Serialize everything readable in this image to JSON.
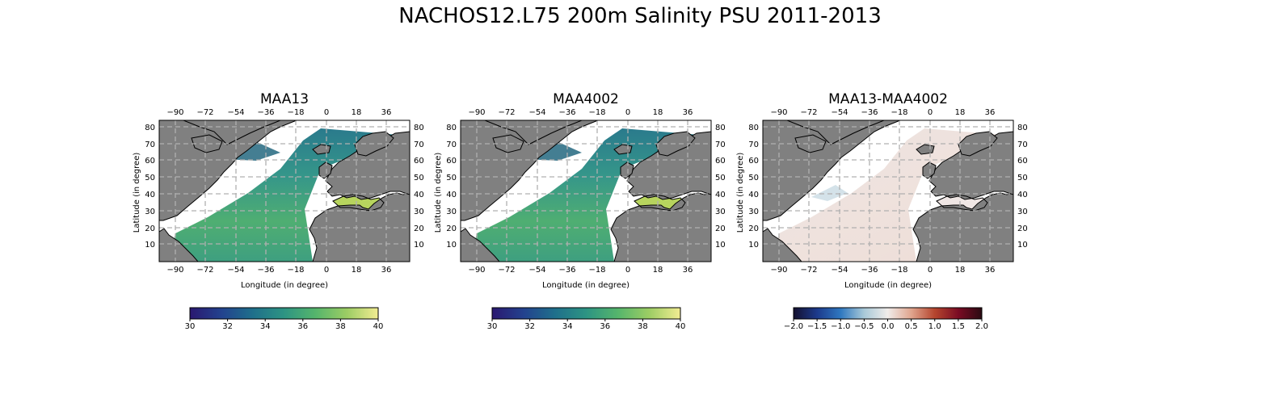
{
  "figure": {
    "title": "NACHOS12.L75 200m Salinity PSU 2011-2013"
  },
  "colors": {
    "land": "#808080",
    "grid": "#b0b0b0",
    "coast": "#000000",
    "missing": "#ffffff"
  },
  "maps": [
    {
      "id": "maa13",
      "title": "MAA13",
      "xlabel": "Longitude (in degree)",
      "ylabel": "Latitude (in degree)",
      "lon_ticks": [
        "−90",
        "−72",
        "−54",
        "−36",
        "−18",
        "0",
        "18",
        "36"
      ],
      "lat_ticks": [
        "10",
        "20",
        "30",
        "40",
        "50",
        "60",
        "70",
        "80"
      ],
      "field": "salinity",
      "colorbar": {
        "ticks": [
          "30",
          "32",
          "34",
          "36",
          "38",
          "40"
        ],
        "stops": [
          "#2a1870",
          "#23428e",
          "#1f6f8b",
          "#2d9483",
          "#55b56c",
          "#9ccd64",
          "#f2ec92"
        ]
      }
    },
    {
      "id": "maa4002",
      "title": "MAA4002",
      "xlabel": "Longitude (in degree)",
      "ylabel": "Latitude (in degree)",
      "lon_ticks": [
        "−90",
        "−72",
        "−54",
        "−36",
        "−18",
        "0",
        "18",
        "36"
      ],
      "lat_ticks": [
        "10",
        "20",
        "30",
        "40",
        "50",
        "60",
        "70",
        "80"
      ],
      "field": "salinity",
      "colorbar": {
        "ticks": [
          "30",
          "32",
          "34",
          "36",
          "38",
          "40"
        ],
        "stops": [
          "#2a1870",
          "#23428e",
          "#1f6f8b",
          "#2d9483",
          "#55b56c",
          "#9ccd64",
          "#f2ec92"
        ]
      }
    },
    {
      "id": "diff",
      "title": "MAA13-MAA4002",
      "xlabel": "Longitude (in degree)",
      "ylabel": "Latitude (in degree)",
      "lon_ticks": [
        "−90",
        "−72",
        "−54",
        "−36",
        "−18",
        "0",
        "18",
        "36"
      ],
      "lat_ticks": [
        "10",
        "20",
        "30",
        "40",
        "50",
        "60",
        "70",
        "80"
      ],
      "field": "difference",
      "colorbar": {
        "ticks": [
          "−2.0",
          "−1.5",
          "−1.0",
          "−0.5",
          "0.0",
          "0.5",
          "1.0",
          "1.5",
          "2.0"
        ],
        "stops": [
          "#14102e",
          "#1c3a8c",
          "#2f78c0",
          "#a9c9d8",
          "#f0ecea",
          "#e0a58e",
          "#b5452e",
          "#7a0b23",
          "#2a0a12"
        ]
      }
    }
  ]
}
